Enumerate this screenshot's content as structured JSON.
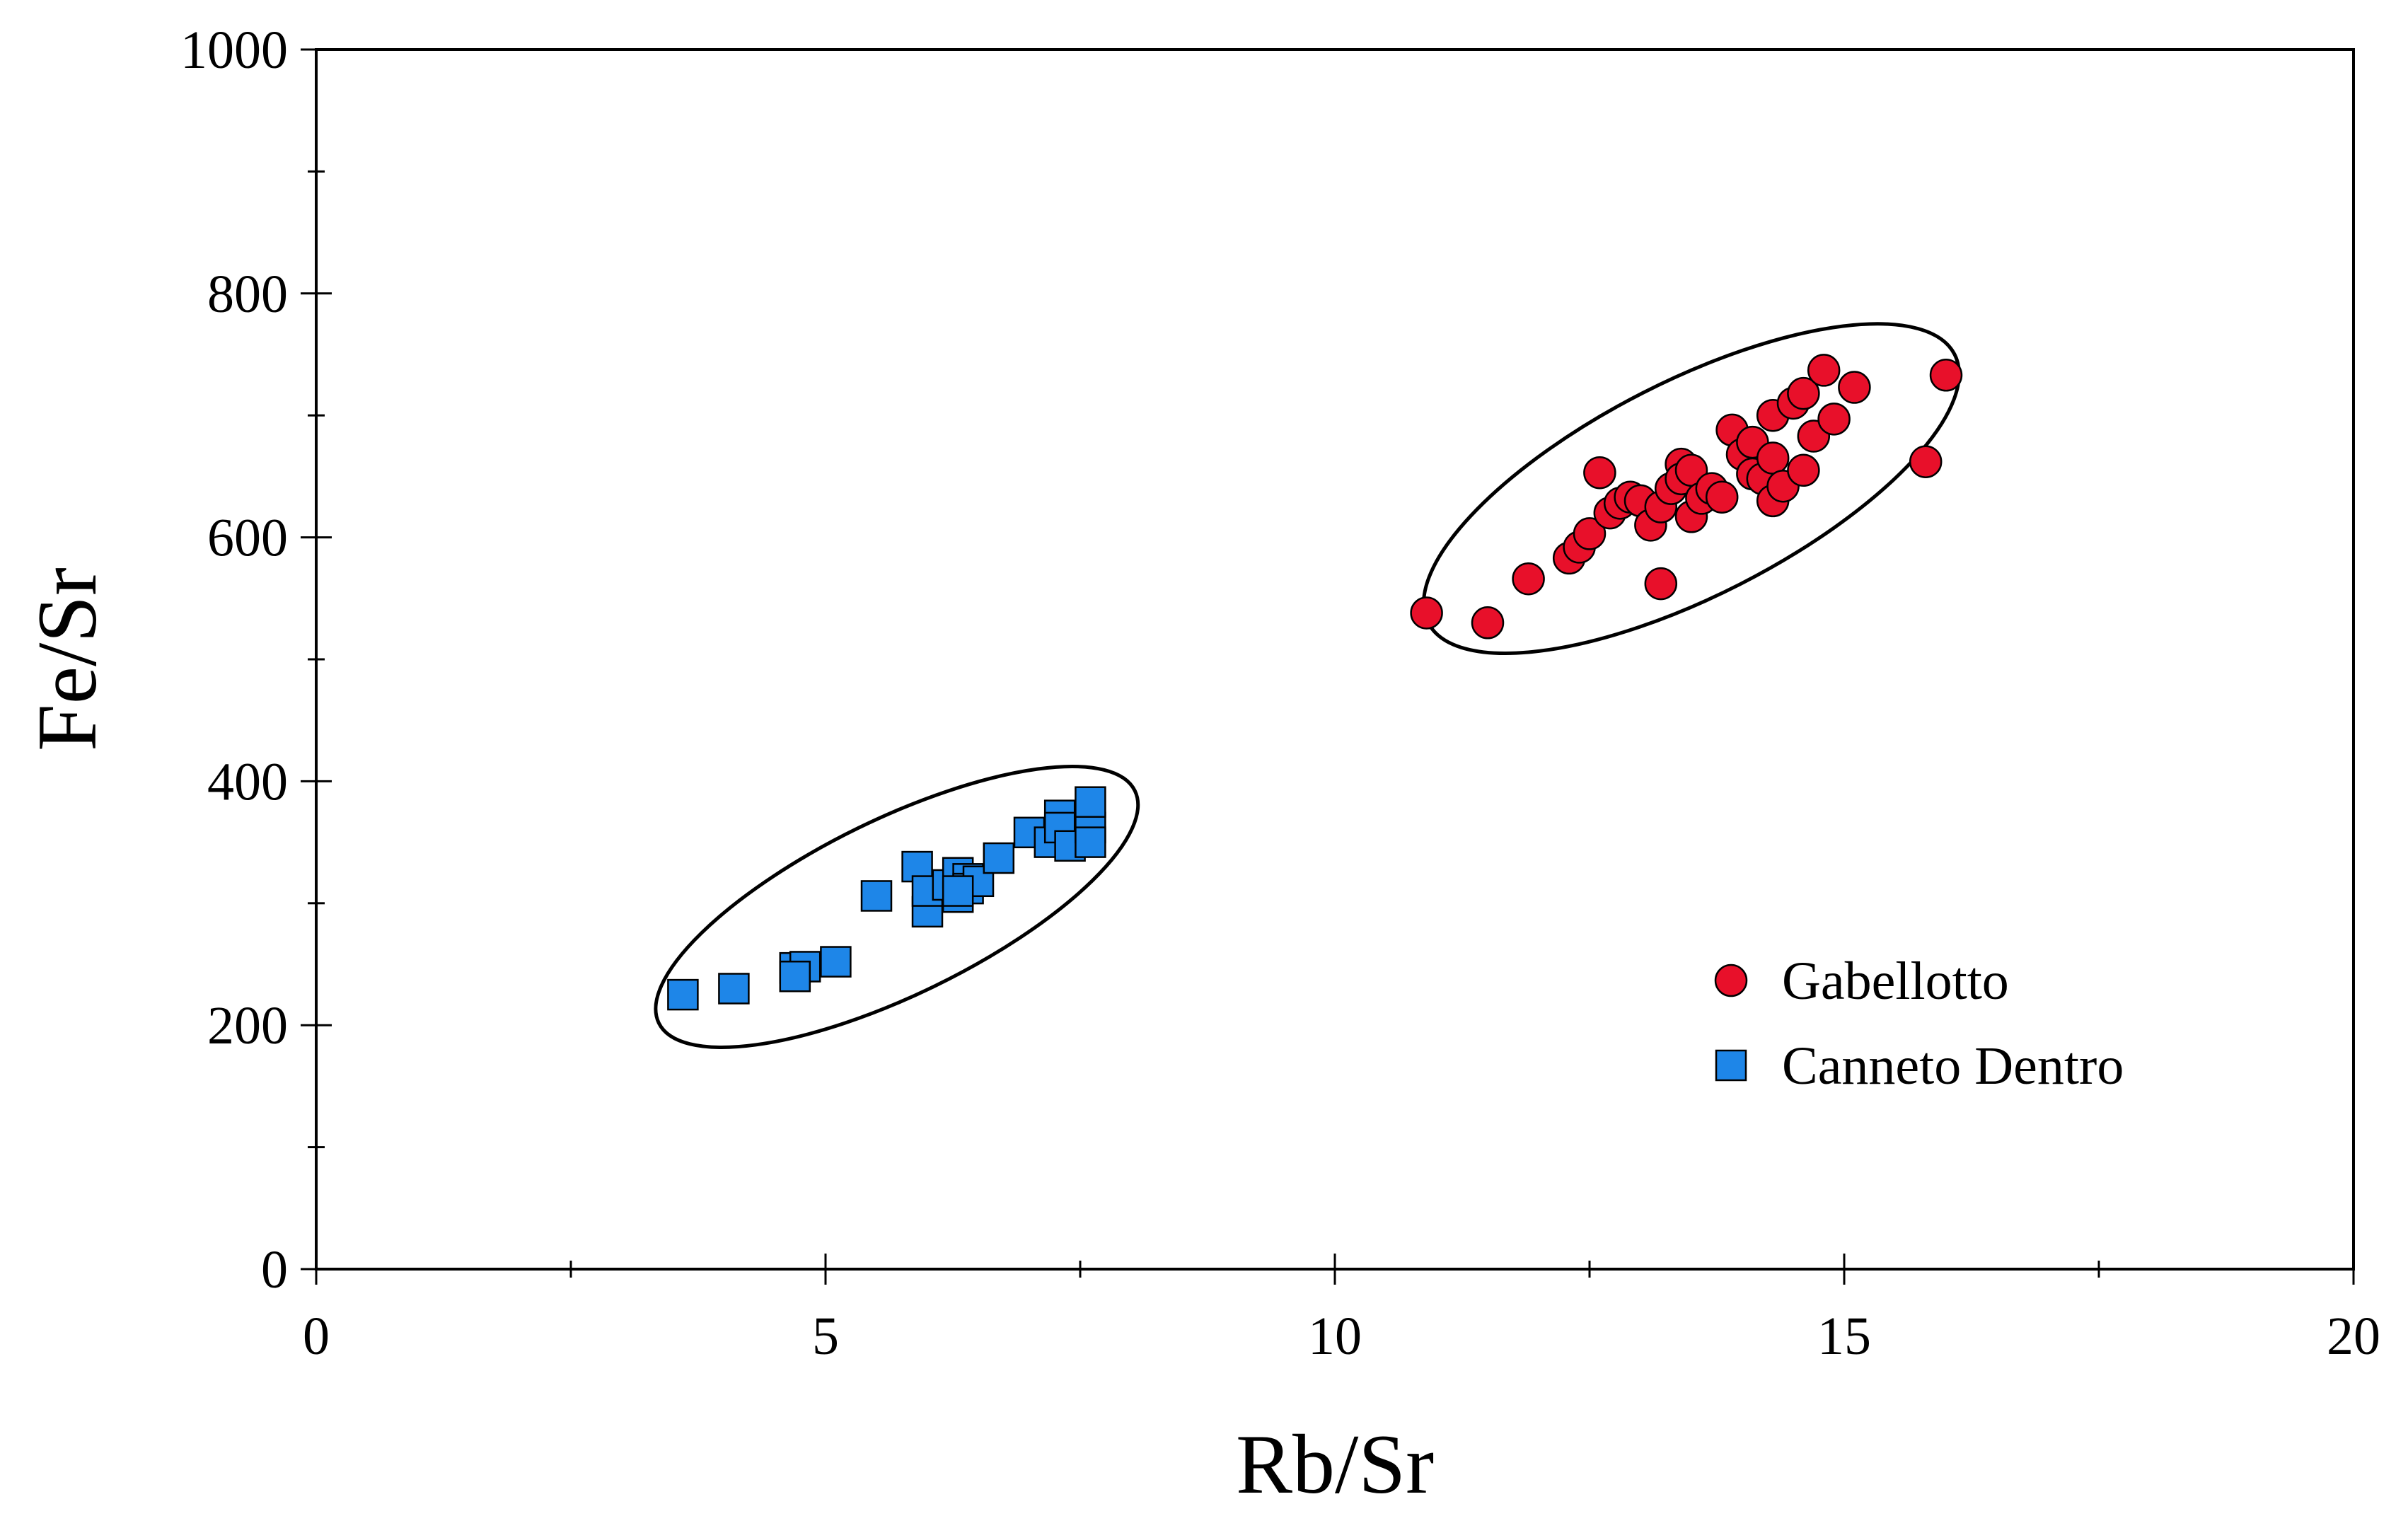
{
  "chart_data": {
    "type": "scatter",
    "title": "",
    "xlabel": "Rb/Sr",
    "ylabel": "Fe/Sr",
    "xlim": [
      0,
      20
    ],
    "ylim": [
      0,
      1000
    ],
    "x_ticks": [
      0,
      5,
      10,
      15,
      20
    ],
    "y_ticks": [
      0,
      200,
      400,
      600,
      800,
      1000
    ],
    "x_tick_labels": [
      "0",
      "5",
      "10",
      "15",
      "20"
    ],
    "y_tick_labels": [
      "0",
      "200",
      "400",
      "600",
      "800",
      "1000"
    ],
    "x_minor_step": 2.5,
    "y_minor_step": 100,
    "grid": false,
    "legend_position": "bottom-right",
    "series": [
      {
        "name": "Gabellotto",
        "marker": "circle",
        "color": "#e8102a",
        "points": [
          [
            10.9,
            538
          ],
          [
            11.5,
            530
          ],
          [
            11.9,
            566
          ],
          [
            12.3,
            583
          ],
          [
            12.4,
            592
          ],
          [
            12.5,
            603
          ],
          [
            12.6,
            653
          ],
          [
            12.7,
            620
          ],
          [
            12.8,
            628
          ],
          [
            12.9,
            633
          ],
          [
            13.0,
            630
          ],
          [
            13.1,
            610
          ],
          [
            13.2,
            562
          ],
          [
            13.2,
            625
          ],
          [
            13.3,
            640
          ],
          [
            13.4,
            660
          ],
          [
            13.4,
            648
          ],
          [
            13.5,
            655
          ],
          [
            13.5,
            617
          ],
          [
            13.6,
            632
          ],
          [
            13.7,
            640
          ],
          [
            13.8,
            633
          ],
          [
            13.9,
            688
          ],
          [
            14.0,
            668
          ],
          [
            14.1,
            678
          ],
          [
            14.1,
            652
          ],
          [
            14.2,
            648
          ],
          [
            14.3,
            665
          ],
          [
            14.3,
            700
          ],
          [
            14.3,
            630
          ],
          [
            14.4,
            642
          ],
          [
            14.5,
            710
          ],
          [
            14.6,
            718
          ],
          [
            14.6,
            655
          ],
          [
            14.7,
            683
          ],
          [
            14.8,
            737
          ],
          [
            14.9,
            697
          ],
          [
            15.1,
            723
          ],
          [
            15.8,
            662
          ],
          [
            16.0,
            733
          ]
        ]
      },
      {
        "name": "Canneto Dentro",
        "marker": "square",
        "color": "#1e86e8",
        "points": [
          [
            3.6,
            225
          ],
          [
            4.1,
            230
          ],
          [
            4.7,
            247
          ],
          [
            4.8,
            248
          ],
          [
            4.7,
            240
          ],
          [
            5.1,
            252
          ],
          [
            5.5,
            306
          ],
          [
            5.9,
            330
          ],
          [
            6.0,
            293
          ],
          [
            6.0,
            310
          ],
          [
            6.2,
            315
          ],
          [
            6.3,
            305
          ],
          [
            6.3,
            325
          ],
          [
            6.4,
            320
          ],
          [
            6.4,
            312
          ],
          [
            6.5,
            318
          ],
          [
            6.3,
            310
          ],
          [
            6.7,
            337
          ],
          [
            7.0,
            358
          ],
          [
            7.2,
            350
          ],
          [
            7.3,
            372
          ],
          [
            7.3,
            362
          ],
          [
            7.4,
            347
          ],
          [
            7.6,
            362
          ],
          [
            7.6,
            383
          ],
          [
            7.6,
            350
          ]
        ]
      }
    ],
    "enclosures": [
      {
        "series": "Gabellotto",
        "center": [
          13.5,
          640
        ],
        "semi_x": 2.9,
        "semi_y": 88,
        "angle_deg": 27
      },
      {
        "series": "Canneto Dentro",
        "center": [
          5.7,
          297
        ],
        "semi_x": 2.6,
        "semi_y": 72,
        "angle_deg": 26
      }
    ]
  }
}
